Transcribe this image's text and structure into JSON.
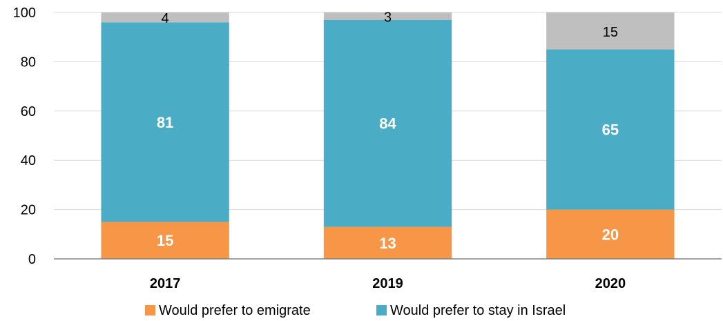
{
  "chart_data": {
    "type": "bar",
    "stacked": true,
    "categories": [
      "2017",
      "2019",
      "2020"
    ],
    "series": [
      {
        "name": "Would prefer to emigrate",
        "values": [
          15,
          13,
          20
        ],
        "color": "#F79646",
        "label_style": "white-bold"
      },
      {
        "name": "Would prefer to stay in Israel",
        "values": [
          81,
          84,
          65
        ],
        "color": "#4BACC6",
        "label_style": "white-bold"
      },
      {
        "values": [
          4,
          3,
          15
        ],
        "color": "#BFBFBF",
        "label_style": "dark"
      }
    ],
    "yticks": [
      "0",
      "20",
      "40",
      "60",
      "80",
      "100"
    ],
    "ylim": [
      0,
      100
    ],
    "title": "",
    "xlabel": "",
    "ylabel": "",
    "grid": true,
    "legend_position": "bottom",
    "legend_entries": [
      "Would prefer to emigrate",
      "Would prefer to stay in Israel"
    ]
  }
}
